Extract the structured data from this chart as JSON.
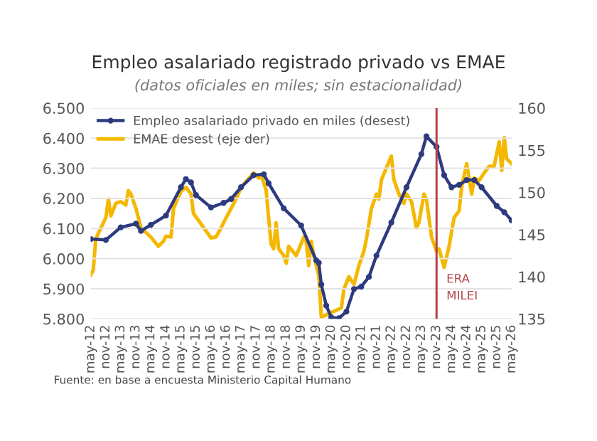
{
  "chart_data": {
    "type": "line",
    "title": "Empleo asalariado registrado privado vs EMAE",
    "subtitle": "(datos oficiales en miles; sin estacionalidad)",
    "series": [
      {
        "name": "Empleo asalariado privado en miles (desest)",
        "color": "#2e3b7e",
        "marker": "circle",
        "x": [
          "2012-05",
          "2012-11",
          "2013-05",
          "2013-11",
          "2014-01",
          "2014-05",
          "2014-11",
          "2015-05",
          "2015-07",
          "2015-09",
          "2015-11",
          "2016-05",
          "2016-10",
          "2017-01",
          "2017-05",
          "2017-10",
          "2018-02",
          "2018-04",
          "2018-10",
          "2019-05",
          "2019-11",
          "2019-12",
          "2020-01",
          "2020-03",
          "2020-05",
          "2020-08",
          "2020-11",
          "2021-02",
          "2021-05",
          "2021-08",
          "2021-11",
          "2022-05",
          "2022-11",
          "2023-05",
          "2023-07",
          "2023-11",
          "2024-02",
          "2024-05",
          "2024-08",
          "2024-11",
          "2025-02",
          "2025-05",
          "2025-11",
          "2026-02",
          "2026-05"
        ],
        "values": [
          6065,
          6062,
          6104,
          6116,
          6092,
          6112,
          6143,
          6237,
          6264,
          6253,
          6211,
          6170,
          6185,
          6198,
          6237,
          6277,
          6280,
          6250,
          6167,
          6110,
          5994,
          5986,
          5914,
          5844,
          5805,
          5802,
          5824,
          5899,
          5907,
          5939,
          6010,
          6120,
          6237,
          6347,
          6406,
          6371,
          6277,
          6237,
          6245,
          6261,
          6261,
          6237,
          6175,
          6154,
          6127
        ]
      },
      {
        "name": "EMAE desest (eje der)",
        "color": "#f5b800",
        "axis": "y2",
        "x": [
          "2012-05",
          "2012-06",
          "2012-07",
          "2012-11",
          "2012-12",
          "2013-01",
          "2013-03",
          "2013-05",
          "2013-07",
          "2013-08",
          "2013-09",
          "2013-11",
          "2014-01",
          "2014-05",
          "2014-08",
          "2014-10",
          "2014-11",
          "2015-01",
          "2015-02",
          "2015-05",
          "2015-07",
          "2015-09",
          "2015-10",
          "2016-05",
          "2016-07",
          "2016-09",
          "2016-11",
          "2017-01",
          "2017-03",
          "2017-05",
          "2017-10",
          "2017-12",
          "2018-01",
          "2018-03",
          "2018-04",
          "2018-05",
          "2018-06",
          "2018-07",
          "2018-08",
          "2018-10",
          "2018-11",
          "2018-12",
          "2019-03",
          "2019-05",
          "2019-06",
          "2019-07",
          "2019-08",
          "2019-09",
          "2019-10",
          "2019-12",
          "2020-01",
          "2020-09",
          "2020-10",
          "2020-12",
          "2021-02",
          "2021-04",
          "2021-06",
          "2021-07",
          "2021-09",
          "2021-11",
          "2021-12",
          "2022-01",
          "2022-03",
          "2022-05",
          "2022-06",
          "2022-08",
          "2022-10",
          "2022-11",
          "2023-01",
          "2023-03",
          "2023-04",
          "2023-06",
          "2023-07",
          "2023-09",
          "2023-11",
          "2023-12",
          "2024-02",
          "2024-04",
          "2024-06",
          "2024-08",
          "2024-09",
          "2024-11",
          "2025-01",
          "2025-02",
          "2025-04",
          "2025-06",
          "2025-08",
          "2025-10",
          "2025-12",
          "2026-01",
          "2026-02",
          "2026-03",
          "2026-05"
        ],
        "values": [
          140.2,
          140.8,
          144.5,
          147,
          149.2,
          147.2,
          148.7,
          148.9,
          148.5,
          150.2,
          149.8,
          148.1,
          145.8,
          144.7,
          143.6,
          144.2,
          144.8,
          144.7,
          148.1,
          150.1,
          150.6,
          149.8,
          147.5,
          144.6,
          144.7,
          145.8,
          147,
          148.1,
          149.2,
          150.6,
          152.3,
          151.7,
          152,
          150.3,
          147,
          143.9,
          143.3,
          146.4,
          143.3,
          142.5,
          141.6,
          143.6,
          142.5,
          143.9,
          144.7,
          144.2,
          141.3,
          144.2,
          142.5,
          140.2,
          135.2,
          136.3,
          138.5,
          140,
          139.1,
          141.3,
          143,
          144.4,
          148.1,
          149.8,
          149.2,
          151.5,
          152.9,
          154.3,
          151.5,
          149.8,
          148.7,
          149.8,
          148.9,
          145.8,
          146.4,
          149.8,
          149.2,
          144.7,
          143,
          143.3,
          141.1,
          143.6,
          147,
          147.8,
          150.6,
          153.4,
          149.8,
          151.7,
          151.4,
          152.3,
          153.1,
          153.1,
          156,
          152.6,
          156.5,
          154,
          153.4
        ]
      }
    ],
    "xlim": [
      "2012-05",
      "2026-05"
    ],
    "xticks": [
      {
        "value": "2012-05",
        "label": "may-12"
      },
      {
        "value": "2012-11",
        "label": "nov-12"
      },
      {
        "value": "2013-05",
        "label": "may-13"
      },
      {
        "value": "2013-11",
        "label": "nov-13"
      },
      {
        "value": "2014-05",
        "label": "may-14"
      },
      {
        "value": "2014-11",
        "label": "nov-14"
      },
      {
        "value": "2015-05",
        "label": "may-15"
      },
      {
        "value": "2015-11",
        "label": "nov-15"
      },
      {
        "value": "2016-05",
        "label": "may-16"
      },
      {
        "value": "2016-11",
        "label": "nov-16"
      },
      {
        "value": "2017-05",
        "label": "may-17"
      },
      {
        "value": "2017-11",
        "label": "nov-17"
      },
      {
        "value": "2018-05",
        "label": "may-18"
      },
      {
        "value": "2018-11",
        "label": "nov-18"
      },
      {
        "value": "2019-05",
        "label": "may-19"
      },
      {
        "value": "2019-11",
        "label": "nov-19"
      },
      {
        "value": "2020-05",
        "label": "may-20"
      },
      {
        "value": "2020-11",
        "label": "nov-20"
      },
      {
        "value": "2021-05",
        "label": "may-21"
      },
      {
        "value": "2021-11",
        "label": "nov-21"
      },
      {
        "value": "2022-05",
        "label": "may-22"
      },
      {
        "value": "2022-11",
        "label": "nov-22"
      },
      {
        "value": "2023-05",
        "label": "may-23"
      },
      {
        "value": "2023-11",
        "label": "nov-23"
      },
      {
        "value": "2024-05",
        "label": "may-24"
      },
      {
        "value": "2024-11",
        "label": "nov-24"
      },
      {
        "value": "2025-05",
        "label": "may-25"
      },
      {
        "value": "2025-11",
        "label": "nov-25"
      },
      {
        "value": "2026-05",
        "label": "may-26"
      }
    ],
    "ylim": [
      5800,
      6500
    ],
    "yticks": [
      {
        "value": 5800,
        "label": "5.800"
      },
      {
        "value": 5900,
        "label": "5.900"
      },
      {
        "value": 6000,
        "label": "6.000"
      },
      {
        "value": 6100,
        "label": "6.100"
      },
      {
        "value": 6200,
        "label": "6.200"
      },
      {
        "value": 6300,
        "label": "6.300"
      },
      {
        "value": 6400,
        "label": "6.400"
      },
      {
        "value": 6500,
        "label": "6.500"
      }
    ],
    "y2lim": [
      135,
      160
    ],
    "y2ticks": [
      135,
      140,
      145,
      150,
      155,
      160
    ],
    "ref_lines": [
      {
        "axis": "x",
        "value": "2023-11",
        "label": "ERA\nMILEI",
        "color": "#b5454a"
      }
    ],
    "annotations": [
      "Fuente: en base a encuesta Ministerio Capital Humano"
    ],
    "grid": "y",
    "legend": "top left"
  }
}
